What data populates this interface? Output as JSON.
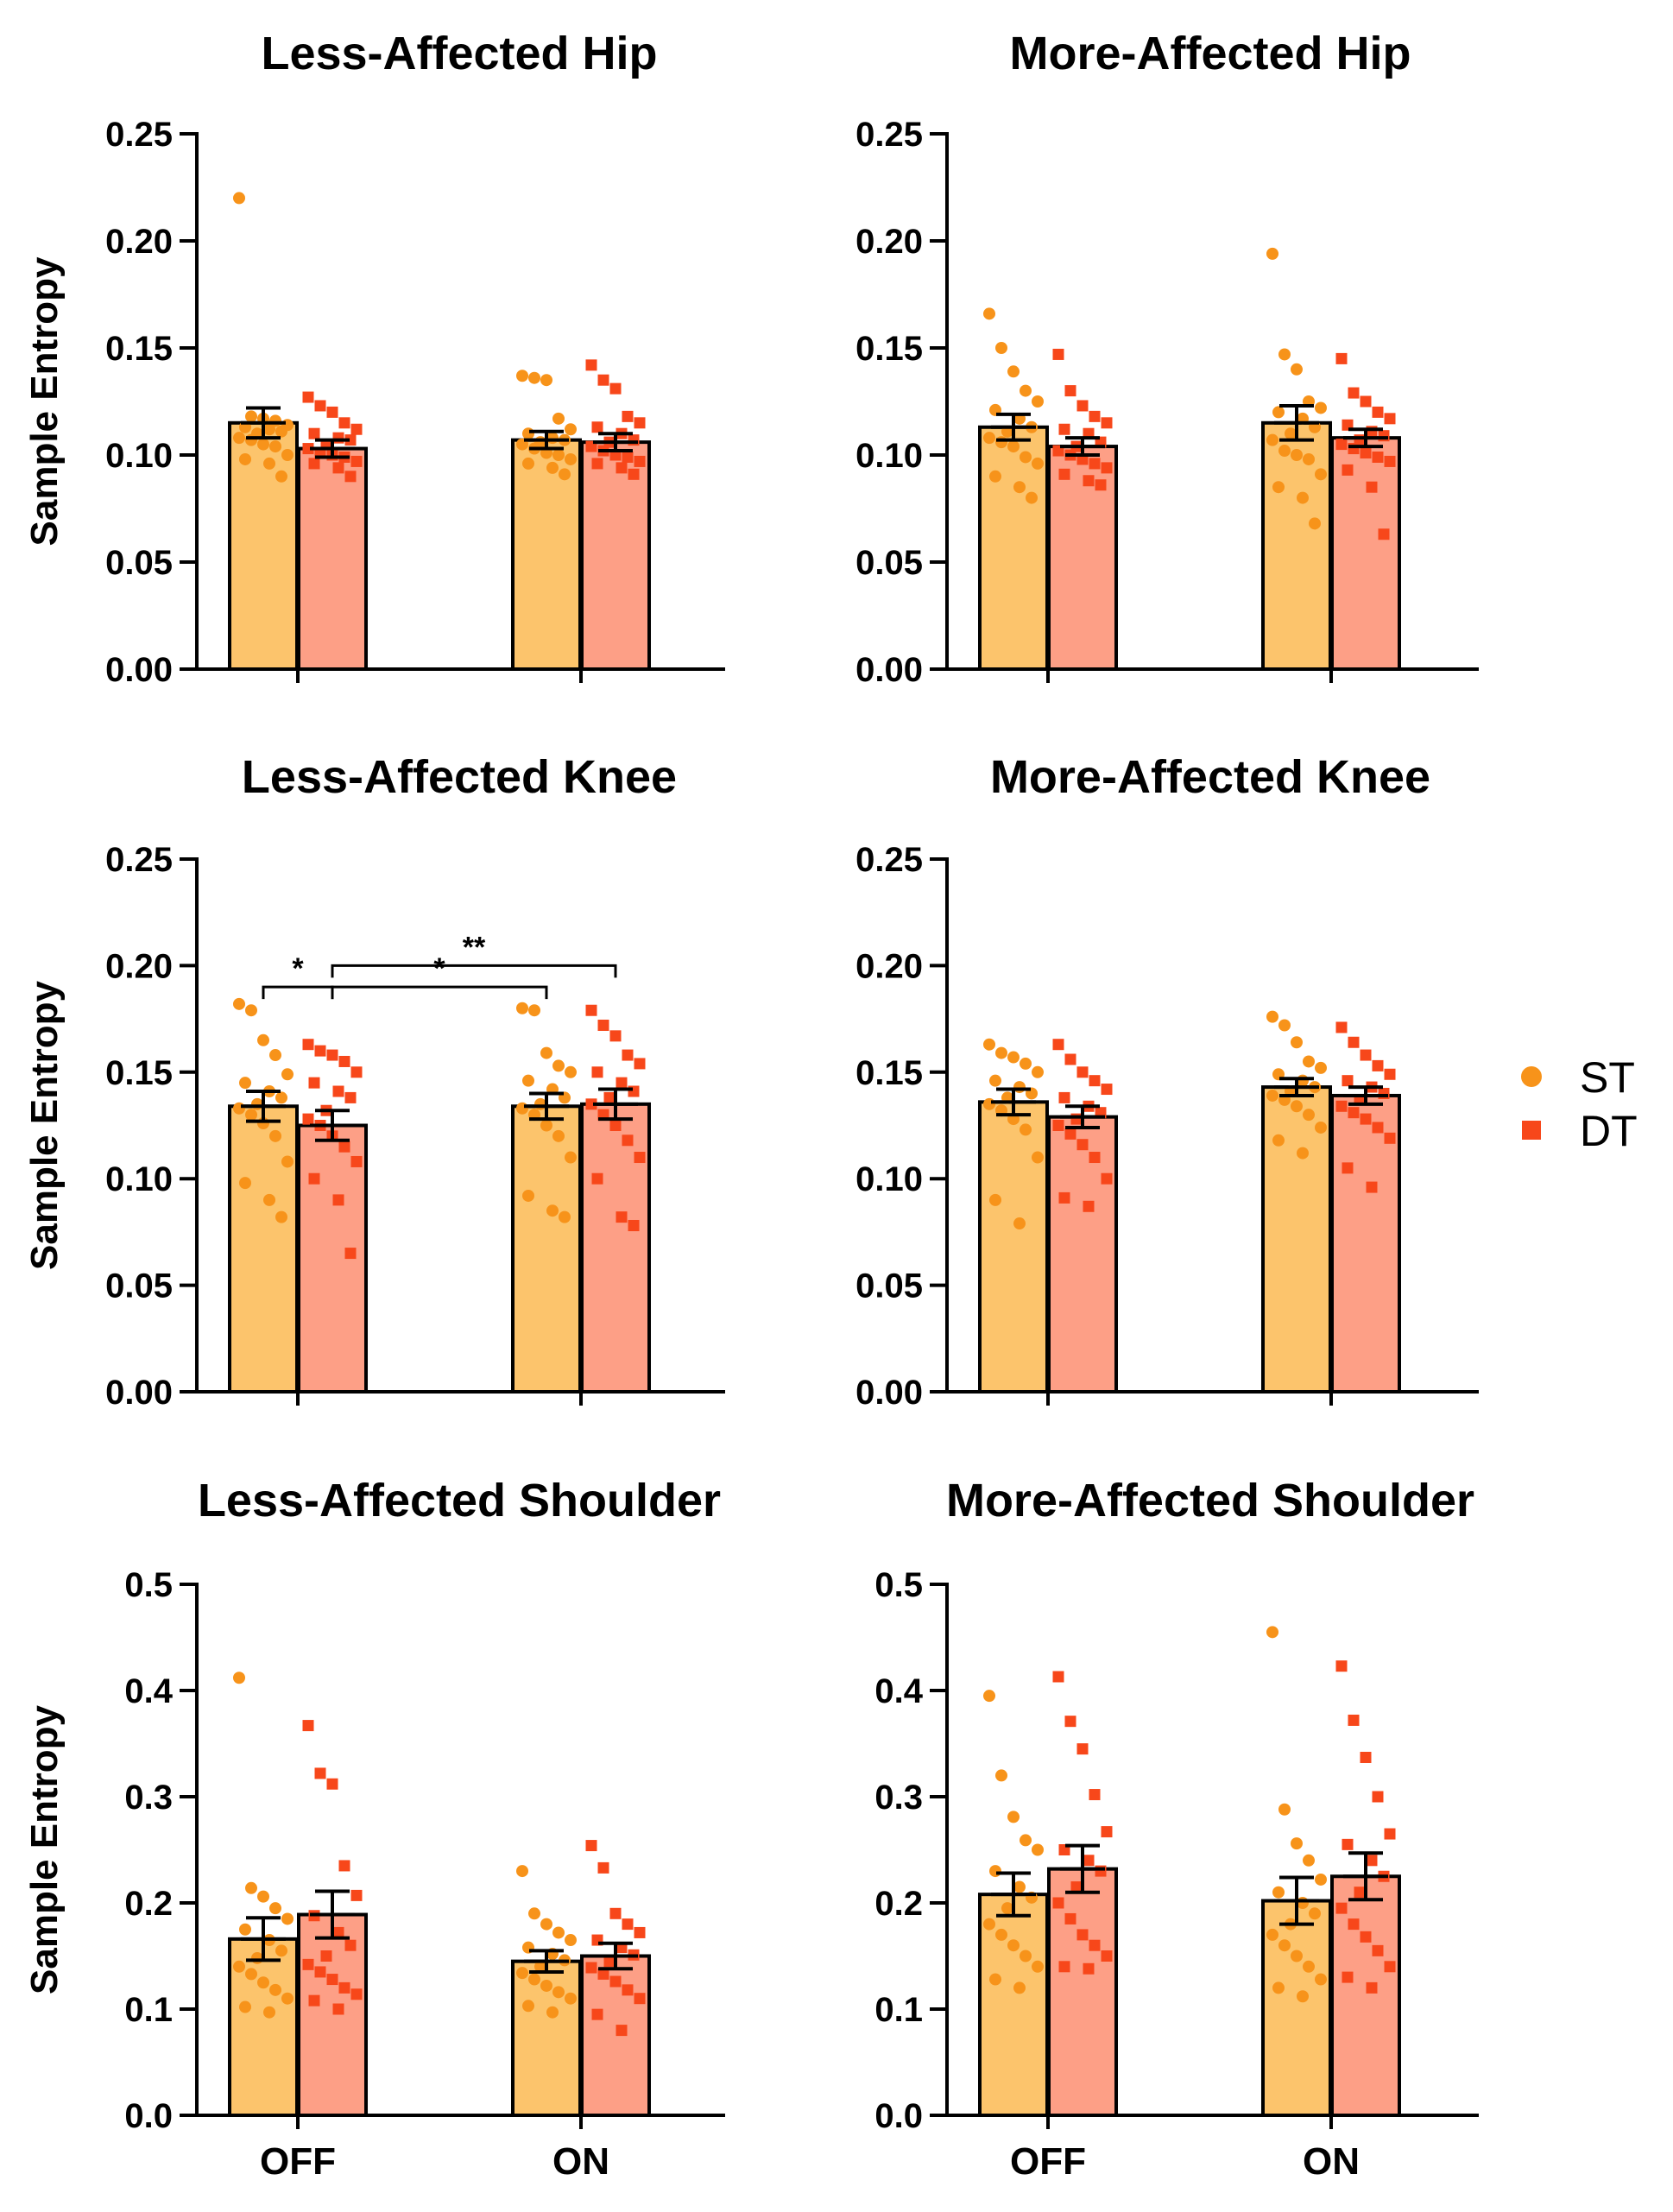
{
  "colors": {
    "st_bar": "#fcc46c",
    "dt_bar": "#fd9f86",
    "st_point": "#f7931a",
    "dt_point": "#f7471a",
    "axis": "#000000"
  },
  "legend": [
    {
      "label": "ST",
      "marker": "circle",
      "color": "#f7931a"
    },
    {
      "label": "DT",
      "marker": "square",
      "color": "#f7471a"
    }
  ],
  "chart_data": [
    {
      "type": "bar",
      "title": "Less-Affected Hip",
      "ylabel": "Sample Entropy",
      "xlabel": "",
      "ylim": [
        0,
        0.25
      ],
      "yticks": [
        "0.00",
        "0.05",
        "0.10",
        "0.15",
        "0.20",
        "0.25"
      ],
      "ytick_values": [
        0,
        0.05,
        0.1,
        0.15,
        0.2,
        0.25
      ],
      "categories": [],
      "groups": [
        "OFF",
        "ON"
      ],
      "series": [
        {
          "name": "ST",
          "means": [
            0.115,
            0.107
          ],
          "sem": [
            0.007,
            0.004
          ],
          "points": [
            [
              0.22,
              0.118,
              0.117,
              0.116,
              0.114,
              0.113,
              0.112,
              0.111,
              0.11,
              0.108,
              0.107,
              0.105,
              0.104,
              0.1,
              0.098,
              0.096,
              0.09
            ],
            [
              0.137,
              0.136,
              0.135,
              0.117,
              0.112,
              0.11,
              0.108,
              0.107,
              0.106,
              0.105,
              0.103,
              0.101,
              0.1,
              0.098,
              0.096,
              0.094,
              0.091
            ]
          ]
        },
        {
          "name": "DT",
          "means": [
            0.103,
            0.106
          ],
          "sem": [
            0.004,
            0.004
          ],
          "points": [
            [
              0.127,
              0.123,
              0.12,
              0.115,
              0.112,
              0.11,
              0.108,
              0.107,
              0.105,
              0.103,
              0.101,
              0.1,
              0.099,
              0.097,
              0.096,
              0.094,
              0.09
            ],
            [
              0.142,
              0.135,
              0.131,
              0.118,
              0.115,
              0.113,
              0.11,
              0.107,
              0.106,
              0.104,
              0.102,
              0.1,
              0.099,
              0.097,
              0.096,
              0.094,
              0.091
            ]
          ]
        }
      ],
      "significance": []
    },
    {
      "type": "bar",
      "title": "More-Affected Hip",
      "ylabel": "",
      "xlabel": "",
      "ylim": [
        0,
        0.25
      ],
      "yticks": [
        "0.00",
        "0.05",
        "0.10",
        "0.15",
        "0.20",
        "0.25"
      ],
      "ytick_values": [
        0,
        0.05,
        0.1,
        0.15,
        0.2,
        0.25
      ],
      "categories": [],
      "groups": [
        "OFF",
        "ON"
      ],
      "series": [
        {
          "name": "ST",
          "means": [
            0.113,
            0.115
          ],
          "sem": [
            0.006,
            0.008
          ],
          "points": [
            [
              0.166,
              0.15,
              0.139,
              0.13,
              0.125,
              0.121,
              0.117,
              0.113,
              0.111,
              0.108,
              0.106,
              0.104,
              0.099,
              0.096,
              0.09,
              0.085,
              0.08
            ],
            [
              0.194,
              0.147,
              0.14,
              0.125,
              0.122,
              0.12,
              0.117,
              0.113,
              0.11,
              0.107,
              0.102,
              0.1,
              0.098,
              0.091,
              0.085,
              0.08,
              0.068
            ]
          ]
        },
        {
          "name": "DT",
          "means": [
            0.104,
            0.108
          ],
          "sem": [
            0.004,
            0.004
          ],
          "points": [
            [
              0.147,
              0.13,
              0.123,
              0.118,
              0.115,
              0.112,
              0.11,
              0.106,
              0.104,
              0.102,
              0.1,
              0.098,
              0.096,
              0.094,
              0.091,
              0.088,
              0.086
            ],
            [
              0.145,
              0.129,
              0.125,
              0.12,
              0.117,
              0.114,
              0.111,
              0.109,
              0.107,
              0.105,
              0.103,
              0.101,
              0.099,
              0.097,
              0.093,
              0.085,
              0.063
            ]
          ]
        }
      ],
      "significance": []
    },
    {
      "type": "bar",
      "title": "Less-Affected Knee",
      "ylabel": "Sample Entropy",
      "xlabel": "",
      "ylim": [
        0,
        0.25
      ],
      "yticks": [
        "0.00",
        "0.05",
        "0.10",
        "0.15",
        "0.20",
        "0.25"
      ],
      "ytick_values": [
        0,
        0.05,
        0.1,
        0.15,
        0.2,
        0.25
      ],
      "categories": [],
      "groups": [
        "OFF",
        "ON"
      ],
      "series": [
        {
          "name": "ST",
          "means": [
            0.134,
            0.134
          ],
          "sem": [
            0.007,
            0.006
          ],
          "points": [
            [
              0.182,
              0.179,
              0.165,
              0.158,
              0.149,
              0.145,
              0.141,
              0.138,
              0.135,
              0.133,
              0.13,
              0.126,
              0.12,
              0.108,
              0.098,
              0.09,
              0.082
            ],
            [
              0.18,
              0.179,
              0.159,
              0.153,
              0.15,
              0.146,
              0.142,
              0.138,
              0.135,
              0.133,
              0.13,
              0.125,
              0.12,
              0.11,
              0.092,
              0.085,
              0.082
            ]
          ]
        },
        {
          "name": "DT",
          "means": [
            0.125,
            0.135
          ],
          "sem": [
            0.007,
            0.007
          ],
          "points": [
            [
              0.163,
              0.16,
              0.158,
              0.155,
              0.15,
              0.145,
              0.141,
              0.138,
              0.132,
              0.128,
              0.125,
              0.12,
              0.115,
              0.108,
              0.1,
              0.09,
              0.065
            ],
            [
              0.179,
              0.172,
              0.167,
              0.158,
              0.154,
              0.15,
              0.145,
              0.141,
              0.138,
              0.135,
              0.13,
              0.125,
              0.118,
              0.11,
              0.1,
              0.082,
              0.078
            ]
          ]
        }
      ],
      "significance": [
        {
          "from": "OFF-ST",
          "to": "OFF-DT",
          "label": "*"
        },
        {
          "from": "OFF-DT",
          "to": "ON-ST",
          "label": "*"
        },
        {
          "from": "OFF-DT",
          "to": "ON-DT",
          "label": "**"
        }
      ]
    },
    {
      "type": "bar",
      "title": "More-Affected Knee",
      "ylabel": "",
      "xlabel": "",
      "ylim": [
        0,
        0.25
      ],
      "yticks": [
        "0.00",
        "0.05",
        "0.10",
        "0.15",
        "0.20",
        "0.25"
      ],
      "ytick_values": [
        0,
        0.05,
        0.1,
        0.15,
        0.2,
        0.25
      ],
      "categories": [],
      "groups": [
        "OFF",
        "ON"
      ],
      "series": [
        {
          "name": "ST",
          "means": [
            0.136,
            0.143
          ],
          "sem": [
            0.006,
            0.004
          ],
          "points": [
            [
              0.163,
              0.159,
              0.157,
              0.154,
              0.15,
              0.146,
              0.143,
              0.14,
              0.138,
              0.135,
              0.132,
              0.128,
              0.123,
              0.11,
              0.09,
              0.079
            ],
            [
              0.176,
              0.172,
              0.164,
              0.155,
              0.152,
              0.149,
              0.146,
              0.143,
              0.141,
              0.139,
              0.137,
              0.134,
              0.13,
              0.124,
              0.118,
              0.112
            ]
          ]
        },
        {
          "name": "DT",
          "means": [
            0.129,
            0.139
          ],
          "sem": [
            0.005,
            0.004
          ],
          "points": [
            [
              0.163,
              0.156,
              0.15,
              0.146,
              0.142,
              0.138,
              0.134,
              0.131,
              0.128,
              0.125,
              0.121,
              0.116,
              0.11,
              0.1,
              0.091,
              0.087
            ],
            [
              0.171,
              0.164,
              0.158,
              0.153,
              0.149,
              0.146,
              0.143,
              0.14,
              0.137,
              0.134,
              0.131,
              0.128,
              0.124,
              0.119,
              0.105,
              0.096
            ]
          ]
        }
      ],
      "significance": []
    },
    {
      "type": "bar",
      "title": "Less-Affected Shoulder",
      "ylabel": "Sample Entropy",
      "xlabel": "",
      "ylim": [
        0,
        0.5
      ],
      "yticks": [
        "0.0",
        "0.1",
        "0.2",
        "0.3",
        "0.4",
        "0.5"
      ],
      "ytick_values": [
        0,
        0.1,
        0.2,
        0.3,
        0.4,
        0.5
      ],
      "categories": [
        "OFF",
        "ON"
      ],
      "groups": [
        "OFF",
        "ON"
      ],
      "series": [
        {
          "name": "ST",
          "means": [
            0.166,
            0.145
          ],
          "sem": [
            0.02,
            0.01
          ],
          "points": [
            [
              0.412,
              0.214,
              0.206,
              0.195,
              0.185,
              0.175,
              0.165,
              0.155,
              0.148,
              0.14,
              0.133,
              0.125,
              0.118,
              0.11,
              0.102,
              0.097
            ],
            [
              0.23,
              0.19,
              0.18,
              0.172,
              0.165,
              0.158,
              0.152,
              0.146,
              0.14,
              0.134,
              0.128,
              0.122,
              0.116,
              0.11,
              0.103,
              0.097
            ]
          ]
        },
        {
          "name": "DT",
          "means": [
            0.189,
            0.15
          ],
          "sem": [
            0.022,
            0.012
          ],
          "points": [
            [
              0.367,
              0.322,
              0.312,
              0.235,
              0.207,
              0.188,
              0.172,
              0.16,
              0.15,
              0.142,
              0.135,
              0.128,
              0.12,
              0.114,
              0.108,
              0.1
            ],
            [
              0.254,
              0.233,
              0.19,
              0.18,
              0.172,
              0.165,
              0.158,
              0.151,
              0.145,
              0.139,
              0.133,
              0.126,
              0.118,
              0.11,
              0.095,
              0.08
            ]
          ]
        }
      ],
      "significance": []
    },
    {
      "type": "bar",
      "title": "More-Affected Shoulder",
      "ylabel": "",
      "xlabel": "",
      "ylim": [
        0,
        0.5
      ],
      "yticks": [
        "0.0",
        "0.1",
        "0.2",
        "0.3",
        "0.4",
        "0.5"
      ],
      "ytick_values": [
        0,
        0.1,
        0.2,
        0.3,
        0.4,
        0.5
      ],
      "categories": [
        "OFF",
        "ON"
      ],
      "groups": [
        "OFF",
        "ON"
      ],
      "series": [
        {
          "name": "ST",
          "means": [
            0.208,
            0.202
          ],
          "sem": [
            0.02,
            0.022
          ],
          "points": [
            [
              0.395,
              0.32,
              0.281,
              0.259,
              0.25,
              0.23,
              0.215,
              0.205,
              0.195,
              0.18,
              0.17,
              0.16,
              0.15,
              0.14,
              0.128,
              0.12
            ],
            [
              0.455,
              0.288,
              0.256,
              0.24,
              0.222,
              0.21,
              0.2,
              0.19,
              0.18,
              0.17,
              0.16,
              0.15,
              0.14,
              0.128,
              0.12,
              0.112
            ]
          ]
        },
        {
          "name": "DT",
          "means": [
            0.232,
            0.225
          ],
          "sem": [
            0.022,
            0.022
          ],
          "points": [
            [
              0.413,
              0.371,
              0.345,
              0.302,
              0.267,
              0.25,
              0.24,
              0.23,
              0.215,
              0.2,
              0.185,
              0.17,
              0.16,
              0.15,
              0.14,
              0.138
            ],
            [
              0.423,
              0.372,
              0.337,
              0.3,
              0.265,
              0.255,
              0.24,
              0.225,
              0.21,
              0.195,
              0.18,
              0.168,
              0.155,
              0.14,
              0.13,
              0.12
            ]
          ]
        }
      ],
      "significance": []
    }
  ]
}
